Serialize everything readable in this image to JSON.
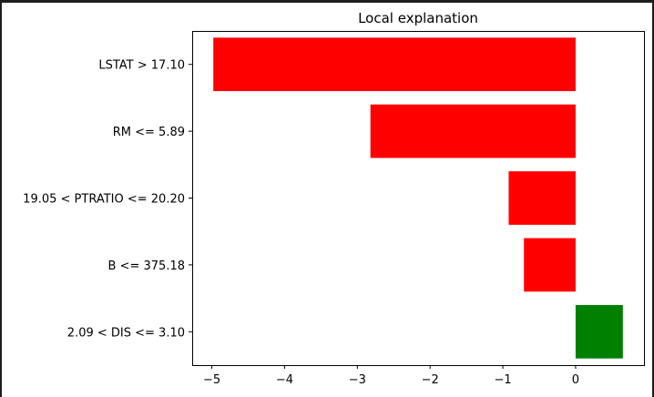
{
  "chart_data": {
    "type": "bar",
    "orientation": "horizontal",
    "title": "Local explanation",
    "xlabel": "",
    "ylabel": "",
    "categories": [
      "LSTAT > 17.10",
      "RM <= 5.89",
      "19.05 < PTRATIO <= 20.20",
      "B <= 375.18",
      "2.09 < DIS <= 3.10"
    ],
    "values": [
      -4.98,
      -2.82,
      -0.92,
      -0.71,
      0.65
    ],
    "bar_colors": [
      "#ff0000",
      "#ff0000",
      "#ff0000",
      "#ff0000",
      "#008000"
    ],
    "xlim": [
      -5.27,
      0.94
    ],
    "xticks": [
      -5,
      -4,
      -3,
      -2,
      -1,
      0
    ],
    "xtick_labels": [
      "−5",
      "−4",
      "−3",
      "−2",
      "−1",
      "0"
    ],
    "grid": false,
    "legend": false
  }
}
